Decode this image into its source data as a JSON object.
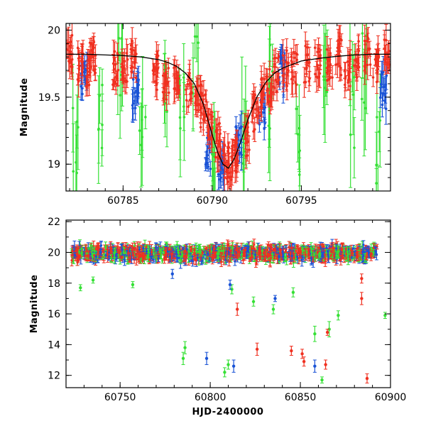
{
  "chart_data": [
    {
      "type": "scatter",
      "panel": "top",
      "ylabel": "Magnitude",
      "xlim": [
        60781.8,
        60800.0
      ],
      "ylim": [
        20.05,
        18.8
      ],
      "y_inverted": true,
      "xticks": [
        60785,
        60790,
        60795
      ],
      "yticks": [
        19,
        19.5,
        20
      ],
      "ytick_labels": [
        "19",
        "19.5",
        "20"
      ],
      "colors": {
        "blue": "#1a53d6",
        "green": "#35e035",
        "red": "#f03020",
        "model": "#000000"
      },
      "model_curve": {
        "description": "single-lens microlensing fit",
        "x": [
          60781.8,
          60783,
          60784,
          60785,
          60786,
          60787,
          60787.5,
          60788,
          60788.5,
          60789,
          60789.5,
          60790,
          60790.3,
          60790.6,
          60790.9,
          60791.2,
          60791.5,
          60792,
          60792.5,
          60793,
          60793.5,
          60794,
          60795,
          60796,
          60797,
          60798,
          60799,
          60800
        ],
        "y": [
          19.82,
          19.82,
          19.815,
          19.81,
          19.8,
          19.78,
          19.76,
          19.73,
          19.68,
          19.6,
          19.45,
          19.22,
          19.09,
          19.0,
          18.97,
          19.03,
          19.13,
          19.33,
          19.5,
          19.61,
          19.68,
          19.72,
          19.77,
          19.79,
          19.805,
          19.815,
          19.82,
          19.82
        ]
      },
      "series": [
        {
          "color": "red",
          "x": [
            60782.0,
            60782.6,
            60783.1,
            60783.3,
            60784.6,
            60785.1,
            60785.6,
            60786.8,
            60787.4,
            60788.0,
            60788.7,
            60789.2,
            60789.5,
            60789.9,
            60790.3,
            60790.8,
            60791.0,
            60791.4,
            60791.9,
            60792.4,
            60792.8,
            60793.2,
            60793.6,
            60794.1,
            60794.6,
            60795.3,
            60795.9,
            60796.6,
            60797.1,
            60797.6,
            60798.1,
            60798.7,
            60799.2,
            60799.8
          ],
          "y": [
            19.85,
            19.75,
            19.72,
            19.8,
            19.73,
            19.7,
            19.78,
            19.68,
            19.62,
            19.6,
            19.55,
            19.48,
            19.4,
            19.32,
            19.18,
            19.03,
            19.0,
            19.05,
            19.2,
            19.38,
            19.52,
            19.58,
            19.68,
            19.72,
            19.7,
            19.75,
            19.78,
            19.72,
            19.8,
            19.7,
            19.78,
            19.82,
            19.75,
            19.85
          ]
        },
        {
          "color": "blue",
          "x": [
            60782.8,
            60785.7,
            60789.8,
            60790.5,
            60791.5,
            60792.8,
            60793.9,
            60799.6
          ],
          "y": [
            19.65,
            19.55,
            19.1,
            19.0,
            19.15,
            19.4,
            19.7,
            19.55
          ]
        },
        {
          "color": "green",
          "x": [
            60782.3,
            60783.7,
            60784.8,
            60786.1,
            60787.3,
            60788.3,
            60789.1,
            60790.1,
            60791.8,
            60793.3,
            60794.8,
            60796.3,
            60797.8,
            60798.5,
            60799.3
          ],
          "y": [
            19.15,
            19.35,
            19.8,
            19.4,
            19.6,
            19.3,
            19.7,
            18.95,
            19.35,
            19.55,
            19.25,
            19.7,
            19.45,
            19.75,
            19.1
          ]
        }
      ]
    },
    {
      "type": "scatter",
      "panel": "bottom",
      "xlabel": "HJD-2400000",
      "ylabel": "Magnitude",
      "xlim": [
        60720,
        60900
      ],
      "ylim": [
        22.1,
        11.2
      ],
      "y_inverted": true,
      "xticks": [
        60750,
        60800,
        60850,
        60900
      ],
      "yticks": [
        12,
        14,
        16,
        18,
        20,
        22
      ],
      "series": [
        {
          "color": "green",
          "x": [
            60728,
            60735,
            60757,
            60785,
            60786,
            60808,
            60810,
            60824,
            60858,
            60862,
            60866,
            60871,
            60897,
            60812,
            60846,
            60835
          ],
          "y": [
            17.7,
            18.2,
            17.9,
            13.1,
            13.8,
            12.2,
            12.7,
            16.8,
            14.7,
            11.7,
            15.0,
            15.9,
            15.9,
            17.6,
            17.4,
            16.3
          ],
          "err": [
            0.2,
            0.2,
            0.2,
            0.4,
            0.4,
            0.3,
            0.3,
            0.3,
            0.5,
            0.2,
            0.5,
            0.3,
            0.2,
            0.3,
            0.3,
            0.3
          ]
        },
        {
          "color": "blue",
          "x": [
            60798,
            60813,
            60836,
            60858,
            60779,
            60811
          ],
          "y": [
            13.1,
            12.6,
            17.0,
            12.6,
            18.6,
            17.9
          ],
          "err": [
            0.4,
            0.4,
            0.2,
            0.4,
            0.3,
            0.3
          ]
        },
        {
          "color": "red",
          "x": [
            60826,
            60845,
            60851,
            60852,
            60864,
            60865,
            60887,
            60815,
            60884,
            60884,
            60792
          ],
          "y": [
            13.7,
            13.6,
            13.4,
            12.9,
            12.7,
            14.8,
            11.8,
            16.3,
            17.0,
            18.3,
            19.5
          ],
          "err": [
            0.4,
            0.3,
            0.3,
            0.3,
            0.3,
            0.2,
            0.3,
            0.4,
            0.4,
            0.3,
            0.3
          ]
        }
      ],
      "baseline": {
        "description": "dense baseline of points around magnitude 20 for all three colors",
        "x_range": [
          60723,
          60893
        ],
        "y_center": 19.95,
        "scatter": 0.35
      }
    }
  ]
}
